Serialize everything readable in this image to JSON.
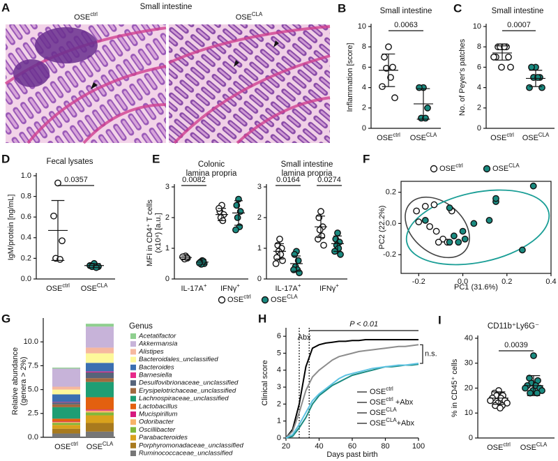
{
  "chart_data": [
    {
      "type": "image",
      "panel_label": "A",
      "title": "Small intestine",
      "images": [
        {
          "label": "OSE",
          "label_sup": "ctrl"
        },
        {
          "label": "OSE",
          "label_sup": "CLA"
        }
      ]
    },
    {
      "type": "strip",
      "panel_label": "B",
      "title": "Small intestine",
      "y_label": "Inflammation [score]",
      "categories": [
        "OSE",
        "OSE"
      ],
      "category_superscripts": [
        "ctrl",
        "CLA"
      ],
      "values": [
        [
          8.0,
          7.0,
          6.0,
          5.9,
          5.0,
          4.1,
          3.0
        ],
        [
          4.0,
          4.0,
          2.0,
          1.0,
          1.0
        ]
      ],
      "means": [
        5.7,
        2.4
      ],
      "sds": [
        1.6,
        1.5
      ],
      "marker_fills": [
        "#ffffff",
        "#1a8a80"
      ],
      "p_value": "0.0063",
      "ylim": [
        0,
        10
      ],
      "yticks": [
        0,
        2,
        4,
        6,
        8,
        10
      ]
    },
    {
      "type": "strip",
      "panel_label": "C",
      "title": "Small intestine",
      "y_label": "No. of Peyer's patches",
      "categories": [
        "OSE",
        "OSE"
      ],
      "category_superscripts": [
        "ctrl",
        "CLA"
      ],
      "values": [
        [
          8,
          8,
          8,
          8,
          8,
          7,
          7,
          7,
          6,
          6
        ],
        [
          6,
          6,
          5,
          5,
          5,
          4,
          4
        ]
      ],
      "means": [
        7.4,
        4.9
      ],
      "sds": [
        0.7,
        0.8
      ],
      "marker_fills": [
        "#ffffff",
        "#1a8a80"
      ],
      "p_value": "0.0007",
      "ylim": [
        0,
        10
      ],
      "yticks": [
        0,
        2,
        4,
        6,
        8,
        10
      ]
    },
    {
      "type": "strip",
      "panel_label": "D",
      "title": "Fecal lysates",
      "y_label": "IgM/protein [ng/mL]",
      "categories": [
        "OSE",
        "OSE"
      ],
      "category_superscripts": [
        "ctrl",
        "CLA"
      ],
      "values": [
        [
          0.93,
          0.61,
          0.37,
          0.2,
          0.19
        ],
        [
          0.15,
          0.13,
          0.12,
          0.12,
          0.11
        ]
      ],
      "means": [
        0.47,
        0.13
      ],
      "sds": [
        0.29,
        0.02
      ],
      "marker_fills": [
        "#ffffff",
        "#1a8a80"
      ],
      "p_value": "0.0357",
      "ylim": [
        0,
        1
      ],
      "yticks": [
        {
          "value": 0,
          "label": "0.0"
        },
        0.2,
        0.4,
        0.6,
        0.8,
        {
          "value": 1,
          "label": "1.0"
        }
      ]
    },
    {
      "type": "strip",
      "panel_label": "E",
      "title": [
        "Colonic",
        "lamina propria"
      ],
      "y_label": [
        "MFI in CD4⁺ T cells",
        "(x10⁴) [a.u.]"
      ],
      "categories": [
        "IL-17A",
        "IFNγ"
      ],
      "category_superscripts": [
        "+",
        "+"
      ],
      "series": [
        {
          "name": "OSE",
          "name_sup": "ctrl",
          "marker_fill": "#ffffff",
          "values": [
            [
              0.75,
              0.7,
              0.68,
              0.65,
              0.7,
              0.72
            ],
            [
              2.4,
              2.2,
              2.1,
              2.0,
              1.9,
              2.3
            ]
          ],
          "means": [
            0.7,
            2.1
          ],
          "sds": [
            0.05,
            0.2
          ]
        },
        {
          "name": "OSE",
          "name_sup": "CLA",
          "marker_fill": "#1a8a80",
          "values": [
            [
              0.6,
              0.55,
              0.5,
              0.48,
              0.58,
              0.52
            ],
            [
              2.6,
              2.4,
              2.2,
              2.0,
              1.7,
              1.6
            ]
          ],
          "means": [
            0.55,
            2.15
          ],
          "sds": [
            0.07,
            0.4
          ]
        }
      ],
      "p_values": [
        "0.0082",
        null
      ],
      "ylim": [
        0,
        3
      ],
      "yticks": [
        0,
        1,
        2,
        3
      ]
    },
    {
      "type": "strip",
      "title": [
        "Small intestine",
        "lamina propria"
      ],
      "categories": [
        "IL-17A",
        "IFNγ"
      ],
      "category_superscripts": [
        "+",
        "+"
      ],
      "series": [
        {
          "name": "OSE",
          "name_sup": "ctrl",
          "marker_fill": "#ffffff",
          "values": [
            [
              1.3,
              1.1,
              1.0,
              0.9,
              0.8,
              0.7,
              0.6,
              0.5
            ],
            [
              2.2,
              2.0,
              1.7,
              1.6,
              1.4,
              1.3,
              1.1
            ]
          ],
          "means": [
            0.9,
            1.7
          ],
          "sds": [
            0.25,
            0.35
          ]
        },
        {
          "name": "OSE",
          "name_sup": "CLA",
          "marker_fill": "#1a8a80",
          "values": [
            [
              0.9,
              0.8,
              0.6,
              0.4,
              0.3,
              0.3,
              0.2
            ],
            [
              1.5,
              1.3,
              1.2,
              1.1,
              1.0,
              0.9,
              0.8
            ]
          ],
          "means": [
            0.5,
            1.15
          ],
          "sds": [
            0.25,
            0.25
          ]
        }
      ],
      "p_values": [
        "0.0164",
        "0.0274"
      ],
      "ylim": [
        0,
        3
      ],
      "yticks": [
        0,
        1,
        2,
        3
      ],
      "legend": true
    },
    {
      "type": "scatter",
      "panel_label": "F",
      "x_label": "PC1 (31.6%)",
      "y_label": "PC2 (22.2%)",
      "series": [
        {
          "name": "OSE",
          "name_sup": "ctrl",
          "marker_fill": "#ffffff",
          "x": [
            -0.21,
            -0.17,
            -0.13,
            -0.2,
            -0.15,
            -0.12,
            -0.09,
            -0.07,
            -0.05,
            -0.11
          ],
          "y": [
            0.08,
            0.11,
            0.12,
            0.01,
            -0.02,
            -0.05,
            -0.1,
            -0.12,
            0.08,
            -0.12
          ]
        },
        {
          "name": "OSE",
          "name_sup": "CLA",
          "marker_fill": "#1a8a80",
          "x": [
            -0.17,
            -0.06,
            -0.04,
            -0.06,
            0.0,
            0.01,
            0.05,
            0.12,
            0.15,
            0.15,
            0.27,
            0.32,
            -0.02
          ],
          "y": [
            0.02,
            0.1,
            -0.08,
            -0.12,
            -0.05,
            -0.1,
            0.0,
            0.02,
            0.14,
            0.16,
            -0.17,
            0.24,
            -0.12
          ]
        }
      ],
      "xlim": [
        -0.28,
        0.4
      ],
      "ylim": [
        -0.32,
        0.27
      ],
      "xticks": [
        -0.2,
        {
          "value": 0,
          "label": "0.0"
        },
        0.2,
        0.4
      ],
      "yticks": [
        -0.2,
        {
          "value": 0,
          "label": "0.0"
        },
        0.2
      ]
    },
    {
      "type": "stacked_bar",
      "panel_label": "G",
      "y_label": [
        "Relative abundance",
        "(genera > 2%)"
      ],
      "legend_title": "Genus",
      "categories": [
        "OSE",
        "OSE"
      ],
      "category_superscripts": [
        "ctrl",
        "CLA"
      ],
      "series": [
        {
          "name": "Acetatifactor",
          "color": "#8fcf8f",
          "values": [
            0.1,
            0.3
          ]
        },
        {
          "name": "Akkermansia",
          "color": "#c7b3d9",
          "values": [
            1.9,
            2.2
          ]
        },
        {
          "name": "Alistipes",
          "color": "#f6b89f",
          "values": [
            0.3,
            0.6
          ]
        },
        {
          "name": "Bacteroidales_unclassified",
          "color": "#fdf89a",
          "values": [
            0.5,
            1.0
          ]
        },
        {
          "name": "Bacteroides",
          "color": "#3b6fb1",
          "values": [
            0.8,
            0.9
          ]
        },
        {
          "name": "Barnesiella",
          "color": "#e7298a",
          "values": [
            0.05,
            0.1
          ]
        },
        {
          "name": "Desulfovibrionaceae_unclassified",
          "color": "#56637a",
          "values": [
            0.2,
            0.6
          ]
        },
        {
          "name": "Erysipelotrichaceae_unclassified",
          "color": "#a2693f",
          "values": [
            0.3,
            0.4
          ]
        },
        {
          "name": "Lachnospiraceae_unclassified",
          "color": "#1f9e74",
          "values": [
            1.2,
            1.6
          ]
        },
        {
          "name": "Lactobacillus",
          "color": "#e3600f",
          "values": [
            0.3,
            1.3
          ]
        },
        {
          "name": "Mucispirillum",
          "color": "#d6197f",
          "values": [
            0.05,
            0.1
          ]
        },
        {
          "name": "Odoribacter",
          "color": "#f8b36a",
          "values": [
            0.1,
            0.2
          ]
        },
        {
          "name": "Oscillibacter",
          "color": "#80b83a",
          "values": [
            0.2,
            0.3
          ]
        },
        {
          "name": "Parabacteroides",
          "color": "#d9a21c",
          "values": [
            0.4,
            0.8
          ]
        },
        {
          "name": "Porphyromonadaceae_unclassified",
          "color": "#a87a1e",
          "values": [
            0.5,
            0.9
          ]
        },
        {
          "name": "Ruminococcaceae_unclassified",
          "color": "#777777",
          "values": [
            0.4,
            0.6
          ]
        }
      ],
      "ylim": [
        0,
        12.5
      ],
      "yticks": [
        {
          "value": 0,
          "label": "0.0"
        },
        2.5,
        {
          "value": 5,
          "label": "5.0"
        },
        7.5,
        {
          "value": 10,
          "label": "10.0"
        }
      ]
    },
    {
      "type": "line",
      "panel_label": "H",
      "x_label": "Days past birth",
      "y_label": "Clinical score",
      "annotation": "P < 0.01",
      "ns_label": "n.s.",
      "abx_label": "Abx",
      "abx_window": [
        28,
        34
      ],
      "x": [
        20,
        24,
        28,
        32,
        36,
        40,
        44,
        48,
        52,
        56,
        60,
        64,
        68,
        72,
        76,
        80,
        84,
        88,
        92,
        96,
        100
      ],
      "series": [
        {
          "name": "OSE",
          "name_sup": "ctrl",
          "color": "#000000",
          "values": [
            0,
            0.5,
            2.0,
            4.2,
            5.3,
            5.5,
            5.6,
            5.65,
            5.7,
            5.7,
            5.75,
            5.75,
            5.8,
            5.8,
            5.8,
            5.8,
            5.8,
            5.8,
            5.8,
            5.8,
            5.8
          ]
        },
        {
          "name": "OSE",
          "name_sup": "ctrl",
          "name_suffix": " +Abx",
          "color": "#8c8c8c",
          "values": [
            0,
            0.4,
            1.5,
            2.8,
            3.6,
            4.0,
            4.3,
            4.6,
            4.8,
            4.9,
            5.0,
            5.1,
            5.15,
            5.2,
            5.25,
            5.3,
            5.35,
            5.4,
            5.4,
            5.45,
            5.5
          ]
        },
        {
          "name": "OSE",
          "name_sup": "CLA",
          "color": "#1a8a80",
          "values": [
            0,
            0.1,
            0.6,
            1.2,
            2.0,
            2.5,
            2.8,
            3.1,
            3.3,
            3.5,
            3.7,
            3.8,
            3.9,
            4.0,
            4.1,
            4.2,
            4.2,
            4.25,
            4.3,
            4.3,
            4.35
          ]
        },
        {
          "name": "OSE",
          "name_sup": "CLA",
          "name_suffix": "+Abx",
          "color": "#5ec3e3",
          "values": [
            0,
            0.2,
            0.8,
            1.5,
            2.2,
            2.6,
            2.9,
            3.2,
            3.5,
            3.7,
            3.8,
            3.9,
            4.0,
            4.1,
            4.15,
            4.2,
            4.25,
            4.3,
            4.3,
            4.35,
            4.4
          ]
        }
      ],
      "xlim": [
        20,
        100
      ],
      "ylim": [
        0,
        6.5
      ],
      "xticks": [
        20,
        40,
        60,
        80,
        100
      ],
      "yticks": [
        0,
        1,
        2,
        3,
        4,
        5,
        6
      ]
    },
    {
      "type": "strip",
      "panel_label": "I",
      "title": "CD11b⁺Ly6G⁻",
      "y_label": "% in CD45⁺ cells",
      "categories": [
        "OSE",
        "OSE"
      ],
      "category_superscripts": [
        "ctrl",
        "CLA"
      ],
      "values": [
        [
          19,
          18,
          17,
          17,
          16,
          16,
          15,
          15,
          14,
          14,
          13,
          13,
          12
        ],
        [
          33,
          24,
          23,
          22,
          21,
          21,
          20,
          20,
          19,
          19,
          18,
          18
        ]
      ],
      "means": [
        16,
        21
      ],
      "sds": [
        2.5,
        4
      ],
      "marker_fills": [
        "#ffffff",
        "#1a8a80"
      ],
      "p_value": "0.0039",
      "ylim": [
        0,
        40
      ],
      "yticks": [
        0,
        10,
        20,
        30,
        40
      ]
    }
  ]
}
